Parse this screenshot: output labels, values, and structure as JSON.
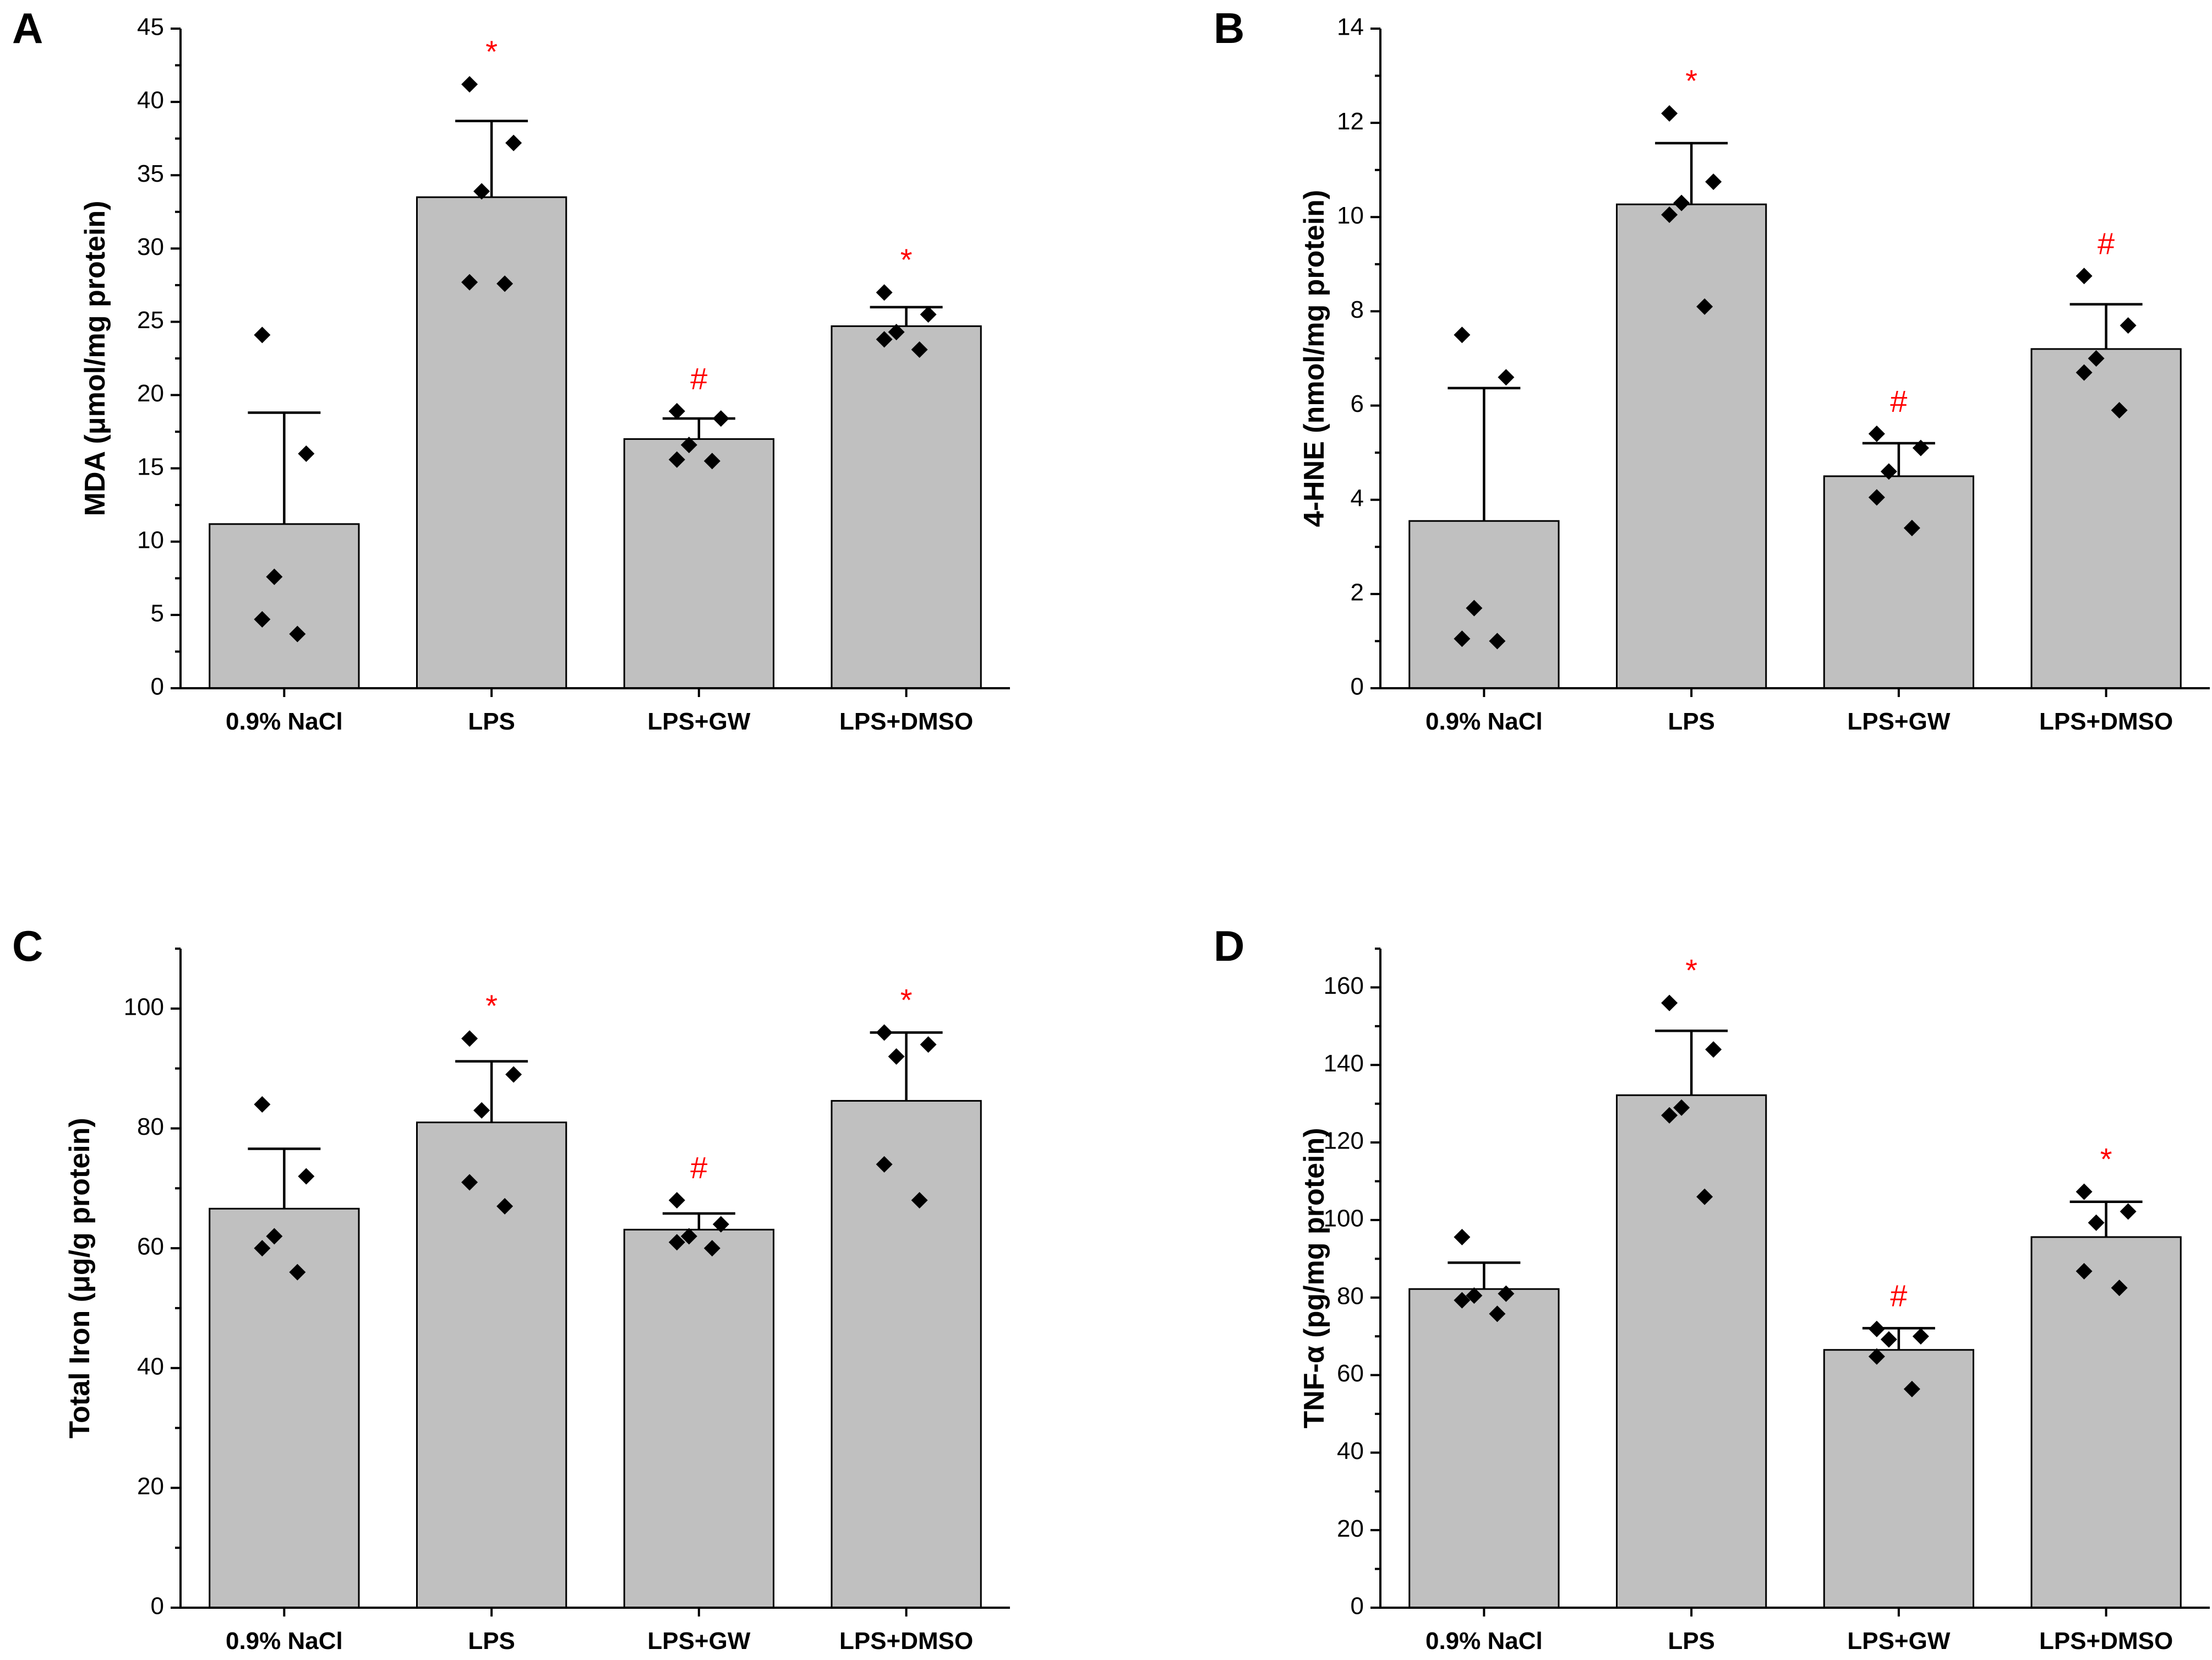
{
  "chart_data": [
    {
      "type": "bar",
      "panel": "A",
      "title": "",
      "xlabel": "",
      "ylabel": "MDA (μmol/mg protein)",
      "ylim": [
        0,
        45
      ],
      "yticks": [
        0,
        5,
        10,
        15,
        20,
        25,
        30,
        35,
        40,
        45
      ],
      "categories": [
        "0.9% NaCl",
        "LPS",
        "LPS+GW",
        "LPS+DMSO"
      ],
      "values": [
        11.2,
        33.5,
        17.0,
        24.7
      ],
      "errors": [
        7.6,
        5.2,
        1.4,
        1.3
      ],
      "points": [
        [
          24.1,
          16.0,
          7.6,
          4.7,
          3.7
        ],
        [
          41.2,
          37.2,
          33.9,
          27.7,
          27.6
        ],
        [
          18.9,
          18.4,
          16.6,
          15.6,
          15.5
        ],
        [
          27.0,
          25.5,
          24.3,
          23.8,
          23.1
        ]
      ],
      "markers": [
        "",
        "*",
        "#",
        "*"
      ]
    },
    {
      "type": "bar",
      "panel": "B",
      "title": "",
      "xlabel": "",
      "ylabel": "4-HNE (nmol/mg protein)",
      "ylim": [
        0,
        14
      ],
      "yticks": [
        0,
        2,
        4,
        6,
        8,
        10,
        12,
        14
      ],
      "categories": [
        "0.9% NaCl",
        "LPS",
        "LPS+GW",
        "LPS+DMSO"
      ],
      "values": [
        3.55,
        10.27,
        4.5,
        7.2
      ],
      "errors": [
        2.82,
        1.3,
        0.7,
        0.95
      ],
      "points": [
        [
          7.5,
          6.6,
          1.7,
          1.05,
          1.0
        ],
        [
          12.2,
          10.75,
          10.3,
          10.05,
          8.1
        ],
        [
          5.4,
          5.1,
          4.6,
          4.05,
          3.4
        ],
        [
          8.75,
          7.7,
          7.0,
          6.7,
          5.9
        ]
      ],
      "markers": [
        "",
        "*",
        "#",
        "#"
      ]
    },
    {
      "type": "bar",
      "panel": "C",
      "title": "",
      "xlabel": "",
      "ylabel": "Total Iron (μg/g protein)",
      "ylim": [
        0,
        110
      ],
      "yticks": [
        0,
        20,
        40,
        60,
        80,
        100
      ],
      "categories": [
        "0.9% NaCl",
        "LPS",
        "LPS+GW",
        "LPS+DMSO"
      ],
      "values": [
        66.6,
        81.0,
        63.1,
        84.6
      ],
      "errors": [
        10.0,
        10.2,
        2.7,
        11.4
      ],
      "points": [
        [
          84.0,
          72.0,
          62.0,
          60.0,
          56.0
        ],
        [
          95.0,
          89.0,
          83.0,
          71.0,
          67.0
        ],
        [
          68.0,
          64.0,
          62.0,
          61.0,
          60.0
        ],
        [
          96.0,
          94.0,
          92.0,
          74.0,
          68.0
        ]
      ],
      "markers": [
        "",
        "*",
        "#",
        "*"
      ]
    },
    {
      "type": "bar",
      "panel": "D",
      "title": "",
      "xlabel": "",
      "ylabel": "TNF-α (pg/mg protein)",
      "ylim": [
        0,
        170
      ],
      "yticks": [
        0,
        20,
        40,
        60,
        80,
        100,
        120,
        140,
        160
      ],
      "categories": [
        "0.9% NaCl",
        "LPS",
        "LPS+GW",
        "LPS+DMSO"
      ],
      "values": [
        82.2,
        132.2,
        66.5,
        95.6
      ],
      "errors": [
        6.8,
        16.6,
        5.6,
        9.1
      ],
      "points": [
        [
          95.6,
          81.0,
          80.5,
          79.3,
          75.8
        ],
        [
          156.0,
          144.0,
          129.0,
          127.0,
          106.0
        ],
        [
          71.9,
          70.0,
          69.2,
          64.8,
          56.4
        ],
        [
          107.3,
          102.2,
          99.3,
          86.8,
          82.5
        ]
      ],
      "markers": [
        "",
        "*",
        "#",
        "*"
      ]
    }
  ]
}
